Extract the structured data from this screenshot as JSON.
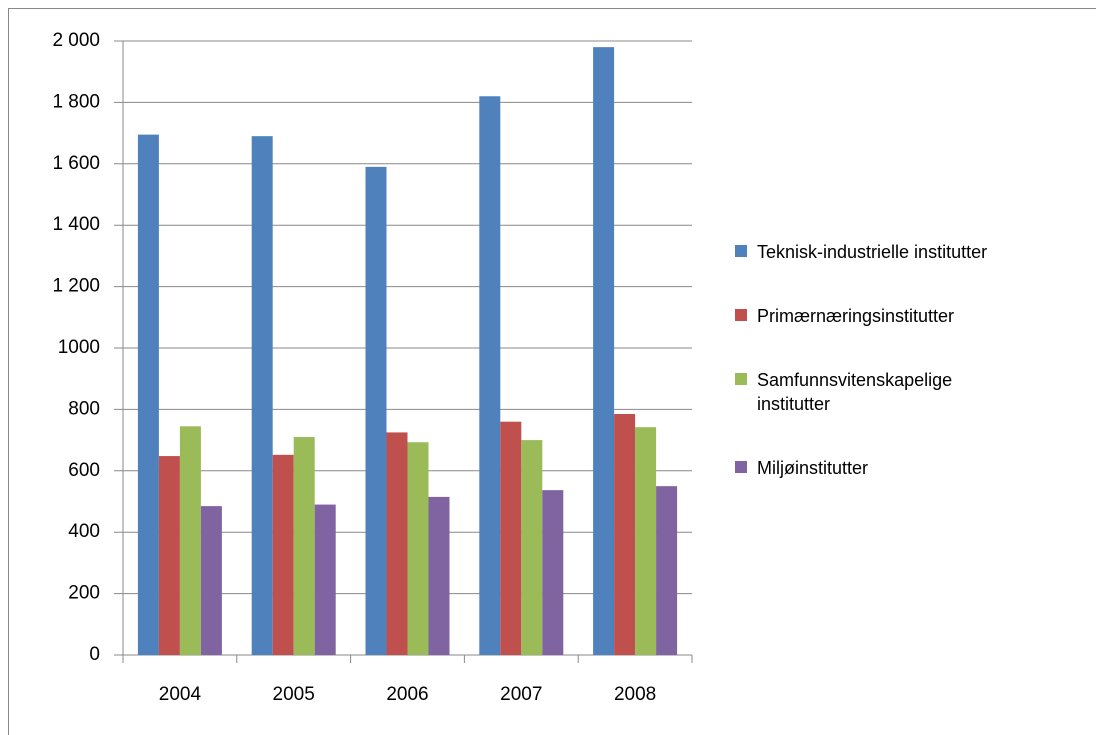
{
  "chart_data": {
    "type": "bar",
    "categories": [
      "2004",
      "2005",
      "2006",
      "2007",
      "2008"
    ],
    "series": [
      {
        "name": "Teknisk-industrielle institutter",
        "color": "#4f81bd",
        "values": [
          1695,
          1690,
          1590,
          1820,
          1980
        ]
      },
      {
        "name": "Primærnæringsinstitutter",
        "color": "#c0504d",
        "values": [
          648,
          652,
          725,
          760,
          785
        ]
      },
      {
        "name": "Samfunnsvitenskapelige institutter",
        "color": "#9bbb59",
        "values": [
          745,
          710,
          693,
          700,
          742
        ]
      },
      {
        "name": "Miljøinstitutter",
        "color": "#8064a2",
        "values": [
          485,
          490,
          515,
          537,
          550
        ]
      }
    ],
    "ylim": [
      0,
      2000
    ],
    "yticks": [
      0,
      200,
      400,
      600,
      800,
      1000,
      {
        "value": 1200,
        "label": "1 200"
      },
      {
        "value": 1400,
        "label": "1 400"
      },
      {
        "value": 1600,
        "label": "1 600"
      },
      {
        "value": 1800,
        "label": "1 800"
      },
      {
        "value": 2000,
        "label": "2 000"
      }
    ],
    "grid": true,
    "legend": "right"
  }
}
